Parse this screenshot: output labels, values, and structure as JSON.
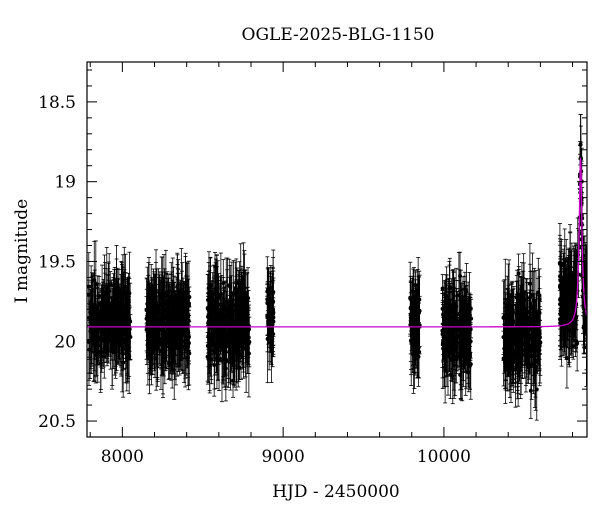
{
  "chart_data": {
    "type": "scatter",
    "title": "OGLE-2025-BLG-1150",
    "xlabel": "HJD - 2450000",
    "ylabel": "I magnitude",
    "xlim": [
      7780,
      10890
    ],
    "ylim": [
      20.6,
      18.25
    ],
    "y_inverted": true,
    "grid": false,
    "x_ticks": [
      8000,
      9000,
      10000
    ],
    "x_tick_labels": [
      "8000",
      "9000",
      "10000"
    ],
    "y_ticks": [
      18.5,
      19,
      19.5,
      20,
      20.5
    ],
    "y_tick_labels": [
      "18.5",
      "19",
      "19.5",
      "20",
      "20.5"
    ],
    "observing_seasons": [
      {
        "x_range": [
          7790,
          8050
        ],
        "mag_mean": 19.88,
        "mag_scatter": 0.15
      },
      {
        "x_range": [
          8150,
          8420
        ],
        "mag_mean": 19.88,
        "mag_scatter": 0.15
      },
      {
        "x_range": [
          8530,
          8790
        ],
        "mag_mean": 19.9,
        "mag_scatter": 0.17
      },
      {
        "x_range": [
          8900,
          8940
        ],
        "mag_mean": 19.85,
        "mag_scatter": 0.12
      },
      {
        "x_range": [
          9790,
          9850
        ],
        "mag_mean": 19.9,
        "mag_scatter": 0.15
      },
      {
        "x_range": [
          9990,
          10170
        ],
        "mag_mean": 19.95,
        "mag_scatter": 0.17
      },
      {
        "x_range": [
          10370,
          10600
        ],
        "mag_mean": 19.95,
        "mag_scatter": 0.17
      },
      {
        "x_range": [
          10720,
          10890
        ],
        "mag_mean": 19.75,
        "mag_scatter": 0.18
      }
    ],
    "model_curve": {
      "color": "#cc00cc",
      "baseline_mag": 19.91,
      "peak_x": 10850,
      "peak_mag": 18.85,
      "tE": 14
    },
    "marker_color": "#000000"
  }
}
